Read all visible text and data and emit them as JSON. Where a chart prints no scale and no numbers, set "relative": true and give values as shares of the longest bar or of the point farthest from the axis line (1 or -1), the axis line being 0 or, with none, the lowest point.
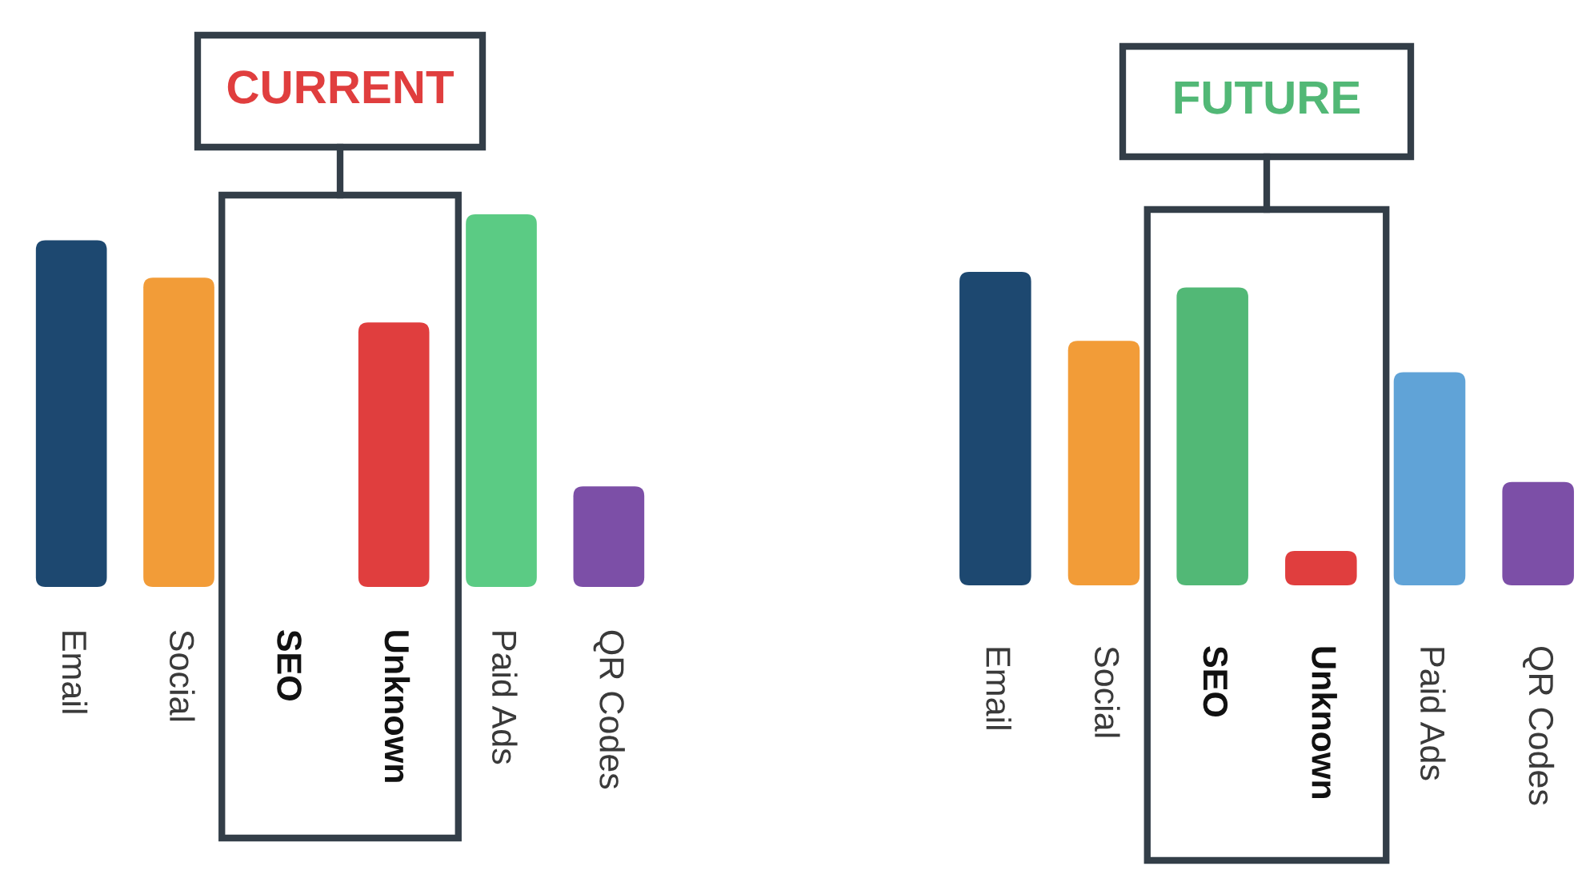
{
  "chart_data": [
    {
      "type": "bar",
      "title": "CURRENT",
      "categories": [
        "Email",
        "Social",
        "SEO",
        "Unknown",
        "Paid Ads",
        "QR Codes"
      ],
      "values": [
        0.93,
        0.83,
        null,
        0.71,
        1,
        0.27
      ],
      "colors": [
        "#1d4870",
        "#f29c38",
        "#52b876",
        "#e03e3e",
        "#5bcb84",
        "#7c4fa7"
      ],
      "relative": true
    },
    {
      "type": "bar",
      "title": "FUTURE",
      "categories": [
        "Email",
        "Social",
        "SEO",
        "Unknown",
        "Paid Ads",
        "QR Codes"
      ],
      "values": [
        1,
        0.78,
        0.95,
        0.11,
        0.68,
        0.33
      ],
      "colors": [
        "#1d4870",
        "#f29c38",
        "#52b876",
        "#e03e3e",
        "#60a3d7",
        "#7c4fa7"
      ],
      "relative": true
    }
  ]
}
